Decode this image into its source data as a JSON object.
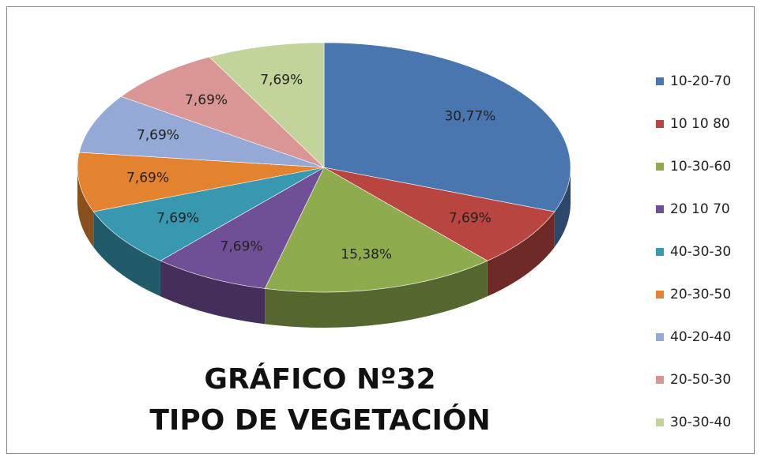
{
  "chart_data": {
    "type": "pie3d",
    "title": "GRÁFICO Nº32",
    "subtitle": "TIPO DE VEGETACIÓN",
    "categories": [
      "10-20-70",
      "10 10 80",
      "10-30-60",
      "20 10 70",
      "40-30-30",
      "20-30-50",
      "40-20-40",
      "20-50-30",
      "30-30-40"
    ],
    "values": [
      30.77,
      7.69,
      15.38,
      7.69,
      7.69,
      7.69,
      7.69,
      7.69,
      7.69
    ],
    "value_labels": [
      "30,77%",
      "7,69%",
      "15,38%",
      "7,69%",
      "7,69%",
      "7,69%",
      "7,69%",
      "7,69%",
      "7,69%"
    ],
    "colors": [
      "#4a76b0",
      "#b94541",
      "#8eab4e",
      "#6f4f95",
      "#3798b0",
      "#e4832f",
      "#94a9d6",
      "#d99694",
      "#c2d49a"
    ],
    "legend": "right"
  }
}
